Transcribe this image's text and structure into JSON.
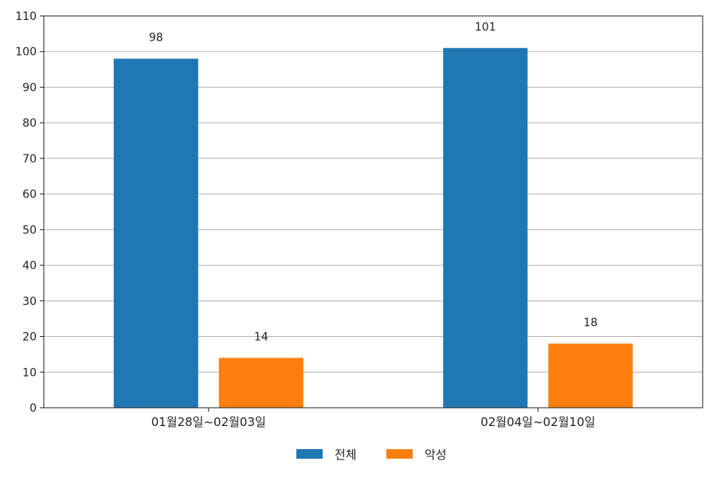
{
  "chart_data": {
    "type": "bar",
    "categories": [
      "01월28일~02월03일",
      "02월04일~02월10일"
    ],
    "series": [
      {
        "name": "전체",
        "values": [
          98,
          101
        ],
        "color": "#1f77b4"
      },
      {
        "name": "악성",
        "values": [
          14,
          18
        ],
        "color": "#ff7f0e"
      }
    ],
    "ylim": [
      0,
      110
    ],
    "yticks": [
      0,
      10,
      20,
      30,
      40,
      50,
      60,
      70,
      80,
      90,
      100,
      110
    ],
    "grid": true,
    "legend_position": "bottom-center",
    "data_labels": true,
    "title": "",
    "xlabel": "",
    "ylabel": ""
  }
}
